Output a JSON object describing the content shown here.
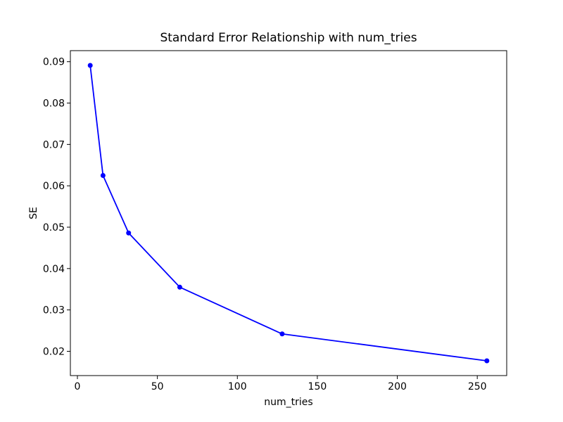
{
  "figure": {
    "title": "Standard Error Relationship with num_tries",
    "xlabel": "num_tries",
    "ylabel": "SE"
  },
  "chart_data": {
    "type": "line",
    "title": "Standard Error Relationship with num_tries",
    "xlabel": "num_tries",
    "ylabel": "SE",
    "x": [
      8,
      16,
      32,
      64,
      128,
      256
    ],
    "y": [
      0.0891,
      0.0625,
      0.0486,
      0.0355,
      0.0242,
      0.0177
    ],
    "xticks": [
      0,
      50,
      100,
      150,
      200,
      250
    ],
    "yticks": [
      0.02,
      0.03,
      0.04,
      0.05,
      0.06,
      0.07,
      0.08,
      0.09
    ],
    "xlim": [
      -4.4,
      268.4
    ],
    "ylim": [
      0.01413,
      0.09267
    ],
    "grid": false,
    "legend": null,
    "line_color": "#0000ff",
    "marker": "o",
    "background_color": "#ffffff",
    "spine_color": "#000000"
  }
}
